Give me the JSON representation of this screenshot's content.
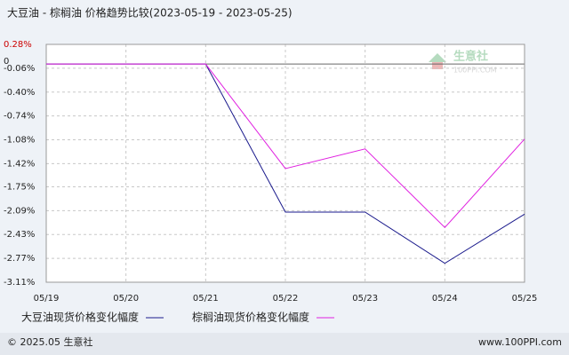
{
  "chart_data": {
    "type": "line",
    "title": "大豆油 - 棕榈油 价格趋势比较(2023-05-19 - 2023-05-25)",
    "categories": [
      "05/19",
      "05/20",
      "05/21",
      "05/22",
      "05/23",
      "05/24",
      "05/25"
    ],
    "series": [
      {
        "name": "大豆油现货价格变化幅度",
        "color": "#1a1a8c",
        "values": [
          0,
          0,
          0,
          -2.11,
          -2.11,
          -2.84,
          -2.14
        ]
      },
      {
        "name": "棕榈油现货价格变化幅度",
        "color": "#e020e0",
        "values": [
          0,
          0,
          0,
          -1.49,
          -1.21,
          -2.33,
          -1.07
        ]
      }
    ],
    "ylim": [
      -3.11,
      0.28
    ],
    "yticks": [
      {
        "value": 0.28,
        "label": "0.28%"
      },
      {
        "value": -0.06,
        "label": "-0.06%"
      },
      {
        "value": -0.4,
        "label": "-0.40%"
      },
      {
        "value": -0.74,
        "label": "-0.74%"
      },
      {
        "value": -1.08,
        "label": "-1.08%"
      },
      {
        "value": -1.42,
        "label": "-1.42%"
      },
      {
        "value": -1.75,
        "label": "-1.75%"
      },
      {
        "value": -2.09,
        "label": "-2.09%"
      },
      {
        "value": -2.43,
        "label": "-2.43%"
      },
      {
        "value": -2.77,
        "label": "-2.77%"
      },
      {
        "value": -3.11,
        "label": "-3.11%"
      }
    ],
    "zero_tick": 0,
    "grid": true,
    "watermark": {
      "name": "生意社",
      "site": "100PPI.COM"
    },
    "footer": {
      "left": "© 2025.05 生意社",
      "right": "www.100PPI.com"
    }
  }
}
